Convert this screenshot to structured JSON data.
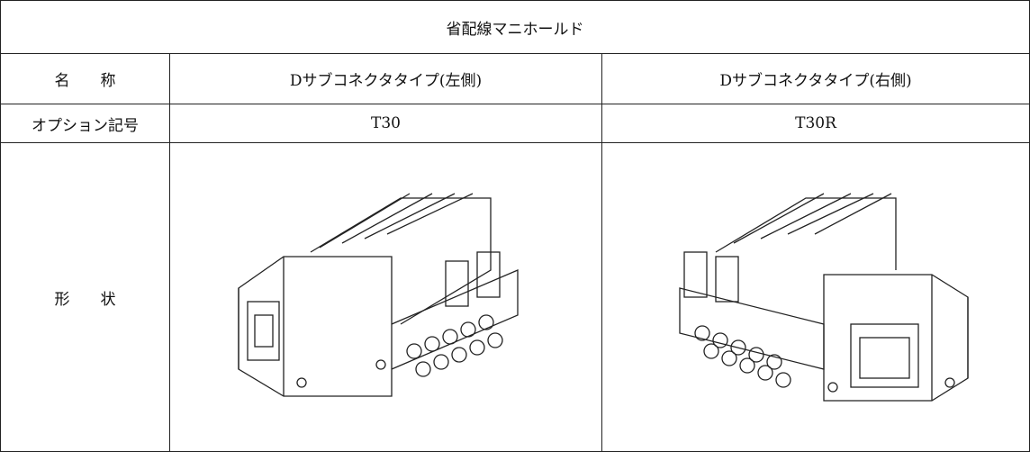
{
  "table": {
    "title": "省配線マニホールド",
    "rows": [
      [
        "名　　称",
        "Dサブコネクタタイプ(左側)",
        "Dサブコネクタタイプ(右側)"
      ],
      [
        "オプション記号",
        "T30",
        "T30R"
      ],
      [
        "形　　状"
      ]
    ]
  }
}
